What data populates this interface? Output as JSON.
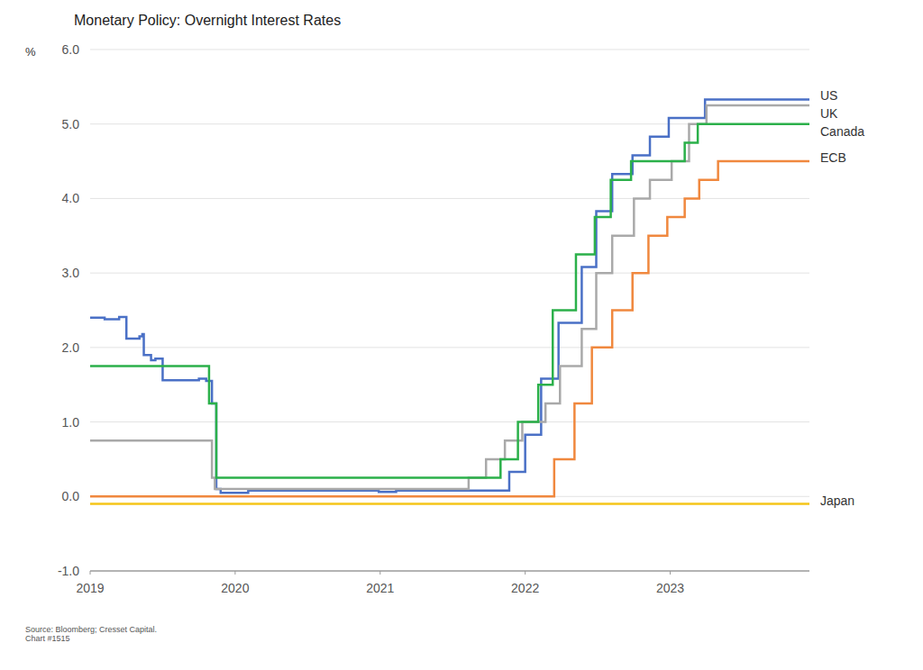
{
  "chart_data": {
    "type": "line",
    "title": "Monetary Policy: Overnight Interest Rates",
    "y_label": "%",
    "footnotes": [
      "Source: Bloomberg; Cresset Capital.",
      "Chart #1515"
    ],
    "line_style": "step",
    "grid": true,
    "xlim": [
      2019,
      2023.96
    ],
    "xticks": [
      2019,
      2020,
      2021,
      2022,
      2023
    ],
    "ylim": [
      -1,
      6
    ],
    "yticks": [
      {
        "value": -1,
        "label": "-1.0"
      },
      {
        "value": 0,
        "label": "0.0"
      },
      {
        "value": 1,
        "label": "1.0"
      },
      {
        "value": 2,
        "label": "2.0"
      },
      {
        "value": 3,
        "label": "3.0"
      },
      {
        "value": 4,
        "label": "4.0"
      },
      {
        "value": 5,
        "label": "5.0"
      },
      {
        "value": 6,
        "label": "6.0"
      }
    ],
    "series": [
      {
        "name": "US",
        "color": "#4a70c6",
        "x": [
          2019,
          2019.1,
          2019.2,
          2019.25,
          2019.34,
          2019.36,
          2019.37,
          2019.42,
          2019.45,
          2019.5,
          2019.75,
          2019.8,
          2019.84,
          2019.87,
          2019.9,
          2020.09,
          2020.74,
          2020.99,
          2021.11,
          2021.89,
          2022.0,
          2022.11,
          2022.23,
          2022.39,
          2022.49,
          2022.6,
          2022.74,
          2022.86,
          2022.99,
          2023.24,
          2023.96
        ],
        "values": [
          2.4,
          2.38,
          2.41,
          2.12,
          2.15,
          2.18,
          1.9,
          1.83,
          1.85,
          1.56,
          1.58,
          1.55,
          1.25,
          0.1,
          0.05,
          0.08,
          0.08,
          0.06,
          0.08,
          0.33,
          0.83,
          1.58,
          2.33,
          3.08,
          3.83,
          4.33,
          4.58,
          4.83,
          5.08,
          5.33,
          5.33
        ]
      },
      {
        "name": "UK",
        "color": "#a9a9a9",
        "x": [
          2019,
          2019.84,
          2019.86,
          2021.61,
          2021.73,
          2021.86,
          2021.98,
          2022.14,
          2022.24,
          2022.39,
          2022.49,
          2022.6,
          2022.75,
          2022.86,
          2023.01,
          2023.13,
          2023.25,
          2023.96
        ],
        "values": [
          0.75,
          0.25,
          0.1,
          0.25,
          0.5,
          0.75,
          1.0,
          1.25,
          1.75,
          2.25,
          3.0,
          3.5,
          4.0,
          4.25,
          4.5,
          5.0,
          5.25,
          5.25
        ]
      },
      {
        "name": "Canada",
        "color": "#2bb04a",
        "x": [
          2019,
          2019.82,
          2019.87,
          2021.83,
          2021.95,
          2022.09,
          2022.19,
          2022.35,
          2022.48,
          2022.59,
          2022.73,
          2023.1,
          2023.19,
          2023.96
        ],
        "values": [
          1.75,
          1.25,
          0.25,
          0.5,
          1.0,
          1.5,
          2.5,
          3.25,
          3.75,
          4.25,
          4.5,
          4.75,
          5.0,
          5.0
        ]
      },
      {
        "name": "ECB",
        "color": "#f0883e",
        "x": [
          2019,
          2022.2,
          2022.34,
          2022.46,
          2022.6,
          2022.74,
          2022.85,
          2022.98,
          2023.1,
          2023.2,
          2023.33,
          2023.96
        ],
        "values": [
          0.0,
          0.5,
          1.25,
          2.0,
          2.5,
          3.0,
          3.5,
          3.75,
          4.0,
          4.25,
          4.5,
          4.5
        ]
      },
      {
        "name": "Japan",
        "color": "#f5c518",
        "x": [
          2019,
          2023.96
        ],
        "values": [
          -0.1,
          -0.1
        ]
      }
    ]
  }
}
